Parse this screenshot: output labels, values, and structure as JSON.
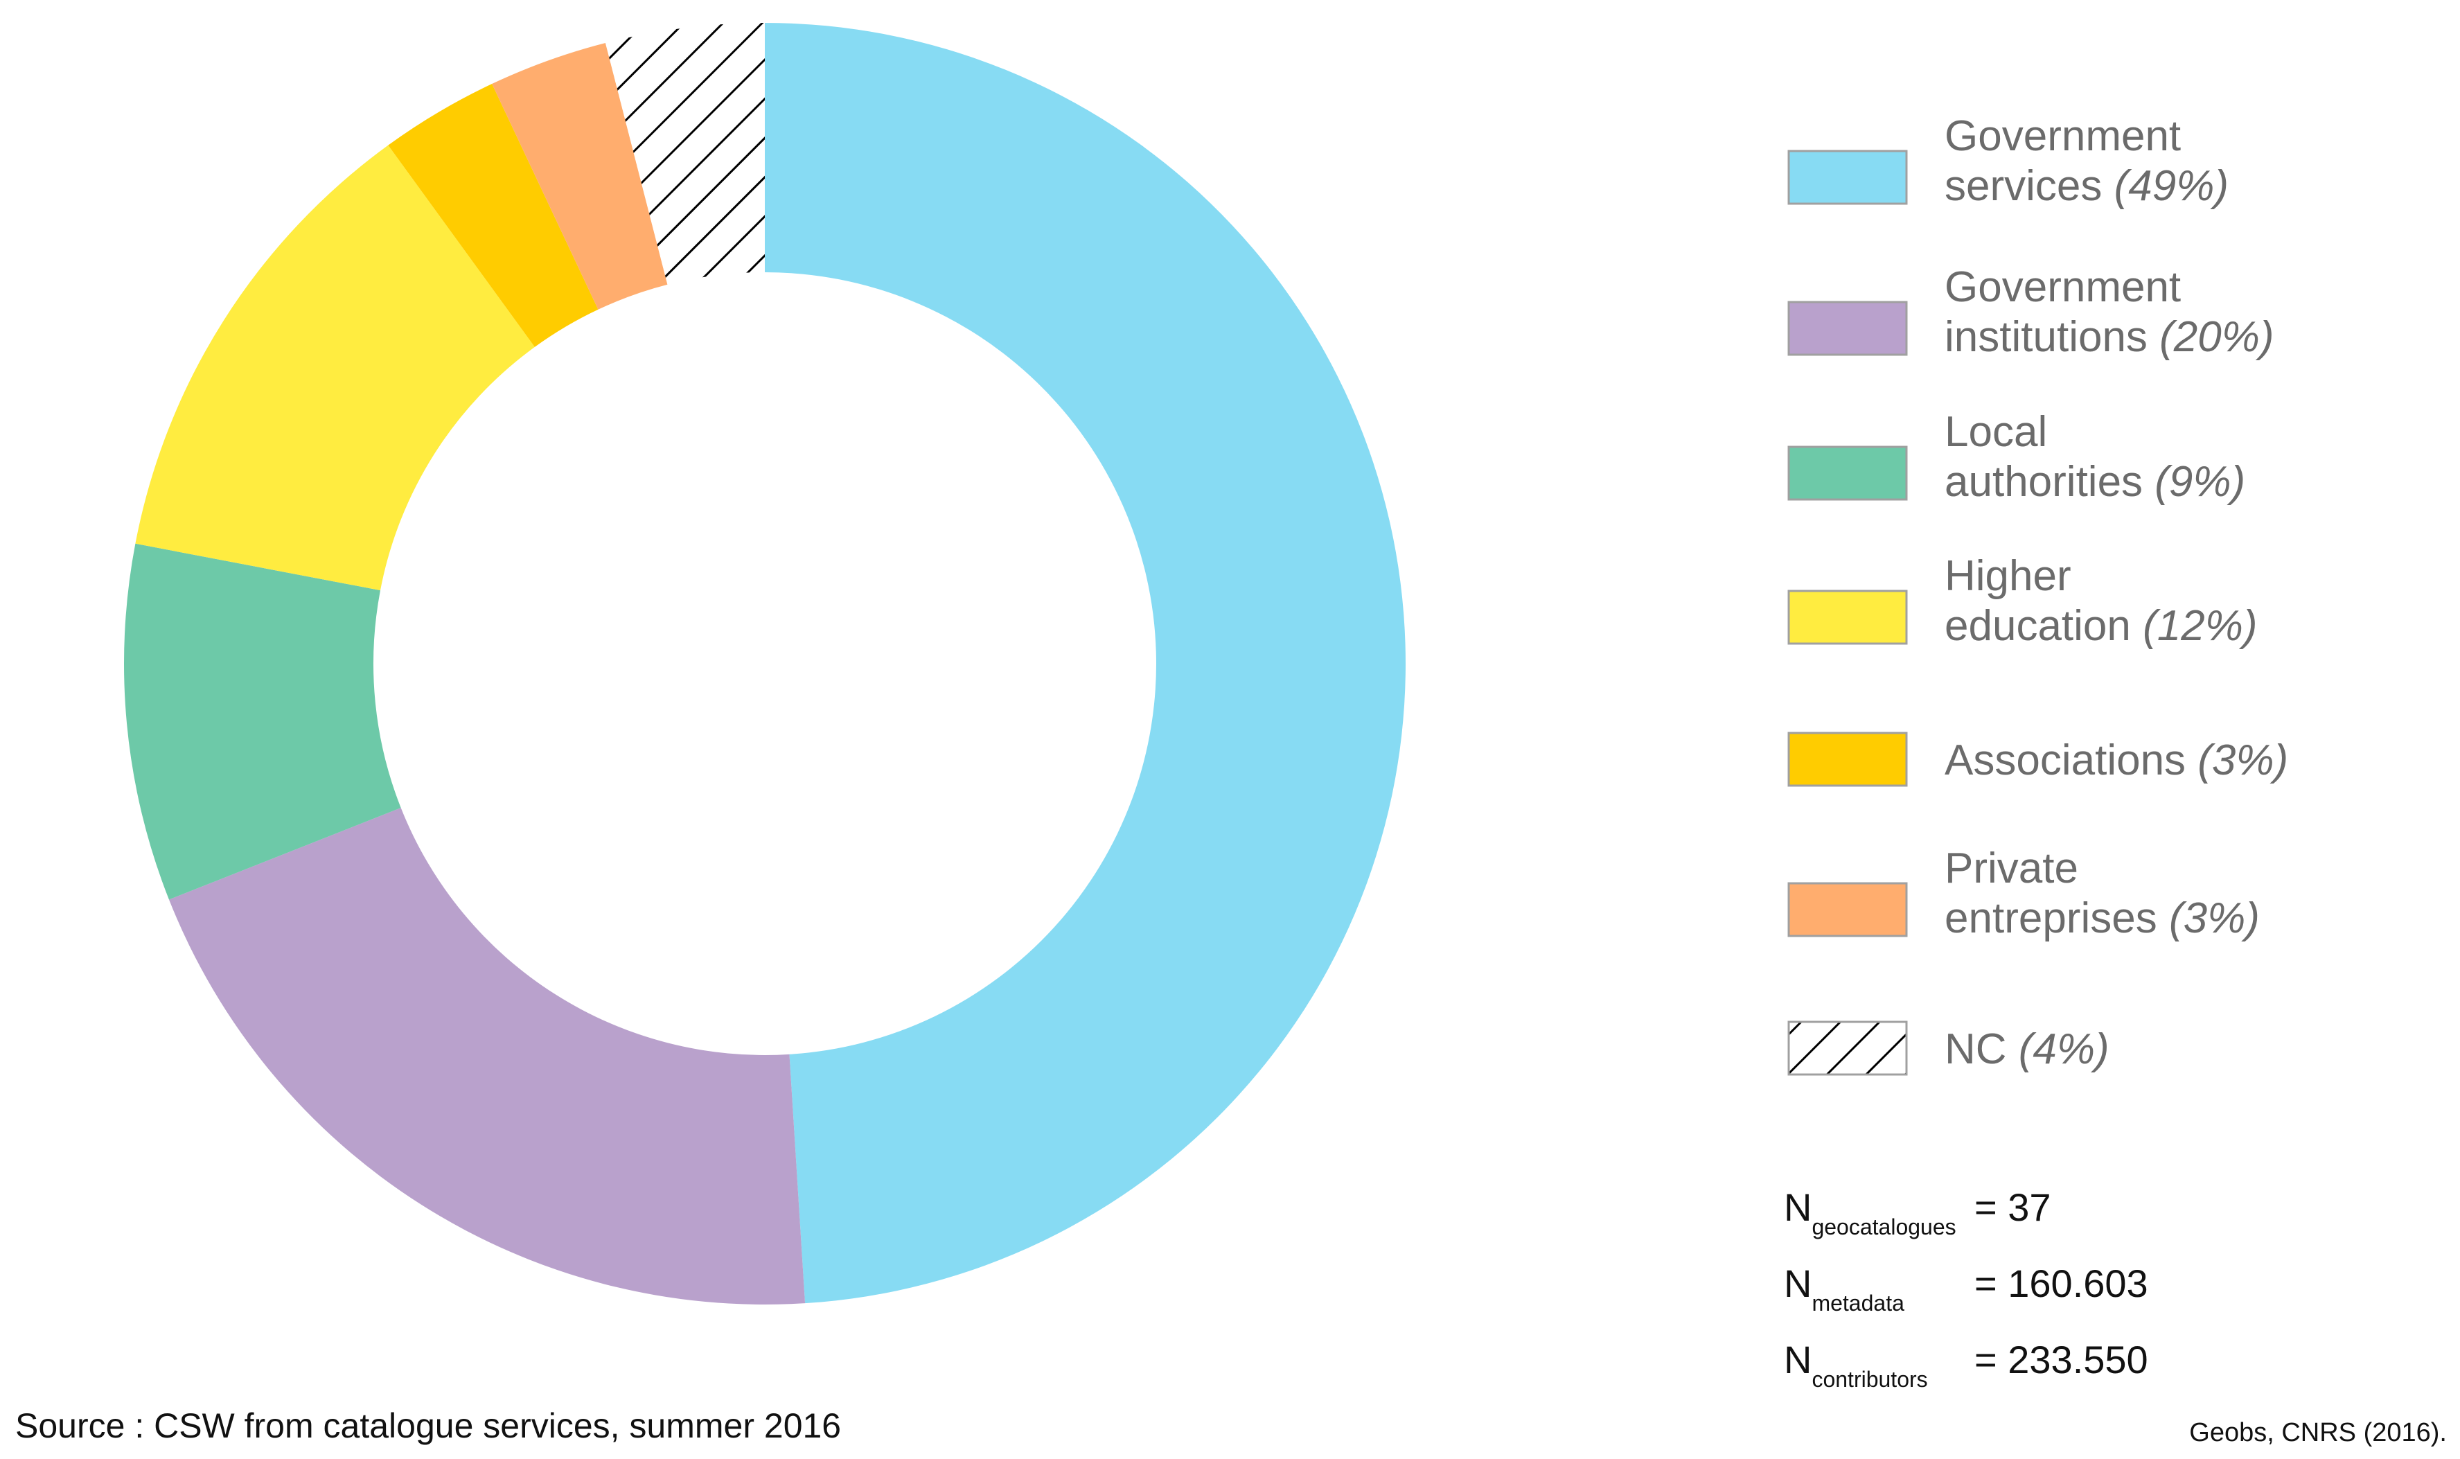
{
  "chart_data": {
    "type": "pie",
    "style": "donut",
    "categories": [
      "Government services",
      "Government institutions",
      "Local authorities",
      "Higher education",
      "Associations",
      "Private entreprises",
      "NC"
    ],
    "values": [
      49,
      20,
      9,
      12,
      3,
      3,
      4
    ],
    "unit": "%",
    "colors": [
      "#87dbf3",
      "#b9a1cc",
      "#6dc9a8",
      "#ffec40",
      "#ffcc00",
      "#ffad6e",
      "hatched"
    ],
    "legend": [
      {
        "line1": "Government",
        "line2": "services",
        "pct": "(49%)"
      },
      {
        "line1": "Government",
        "line2": "institutions",
        "pct": "(20%)"
      },
      {
        "line1": "Local",
        "line2": "authorities",
        "pct": "(9%)"
      },
      {
        "line1": "Higher",
        "line2": "education",
        "pct": "(12%)"
      },
      {
        "line1": "",
        "line2": "Associations",
        "pct": "(3%)"
      },
      {
        "line1": "Private",
        "line2": "entreprises",
        "pct": "(3%)"
      },
      {
        "line1": "",
        "line2": "NC",
        "pct": "(4%)"
      }
    ],
    "legend_placement": "right"
  },
  "stats": [
    {
      "symbol": "N",
      "sub": "geocatalogues",
      "value": "= 37"
    },
    {
      "symbol": "N",
      "sub": "metadata",
      "value": "= 160.603"
    },
    {
      "symbol": "N",
      "sub": "contributors",
      "value": "= 233.550"
    }
  ],
  "source": "Source : CSW from catalogue services, summer 2016",
  "credit": "Geobs, CNRS (2016)."
}
